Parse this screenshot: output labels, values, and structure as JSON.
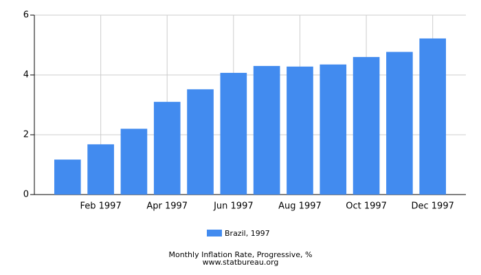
{
  "chart_data": {
    "type": "bar",
    "title": "Monthly Inflation Rate, Progressive, %",
    "subtitle": "www.statbureau.org",
    "categories": [
      null,
      "Feb 1997",
      null,
      "Apr 1997",
      null,
      "Jun 1997",
      null,
      "Aug 1997",
      null,
      "Oct 1997",
      null,
      "Dec 1997"
    ],
    "series": [
      {
        "name": "Brazil, 1997",
        "color": "#428bef",
        "values": [
          1.17,
          1.68,
          2.2,
          3.1,
          3.52,
          4.07,
          4.3,
          4.28,
          4.35,
          4.6,
          4.77,
          5.22
        ]
      }
    ],
    "ylim": [
      0,
      6
    ],
    "yticks": [
      0,
      2,
      4,
      6
    ],
    "grid": true
  }
}
